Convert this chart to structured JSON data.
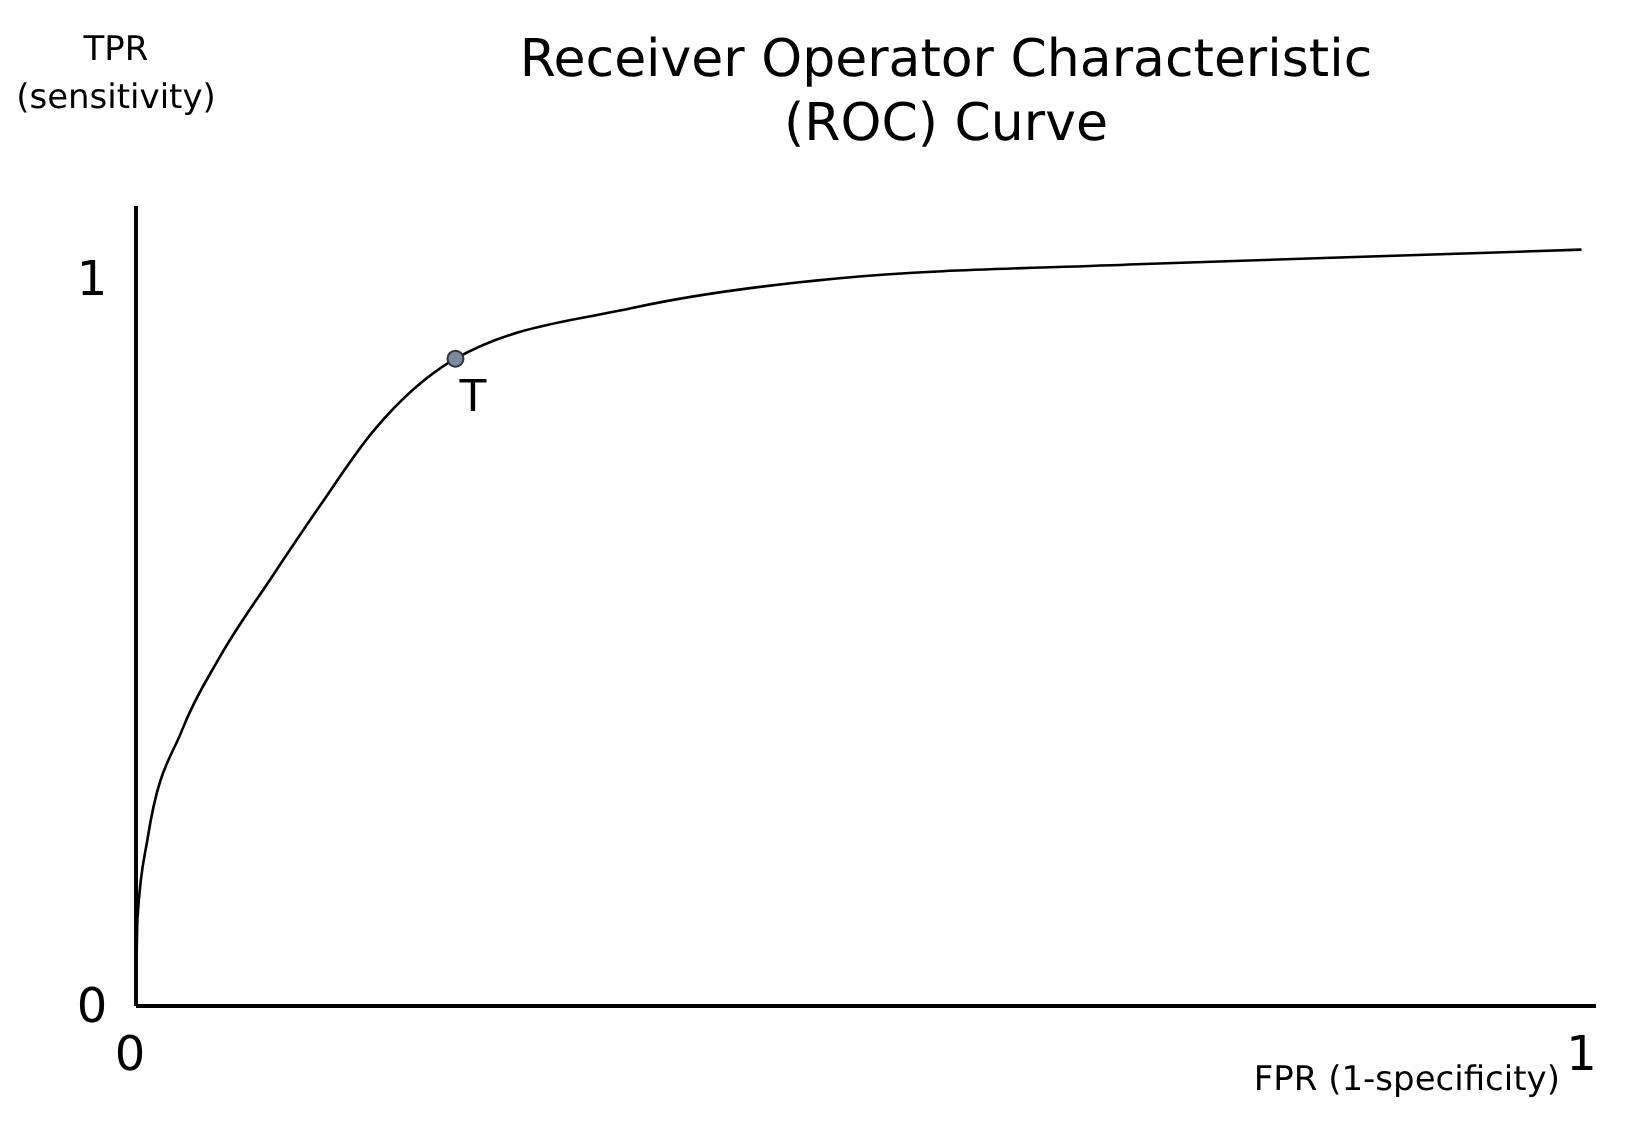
{
  "chart_data": {
    "type": "line",
    "title": "Receiver Operator Characteristic (ROC) Curve",
    "xlabel": "FPR (1-specificity)",
    "ylabel": "TPR (sensitivity)",
    "xlim": [
      0,
      1.01
    ],
    "ylim": [
      0,
      1.1
    ],
    "xticks": [
      0,
      1
    ],
    "yticks": [
      0,
      1
    ],
    "grid": false,
    "series": [
      {
        "color": "#000000",
        "marker": "none",
        "line_style": "solid",
        "x": [
          0,
          0.001,
          0.008,
          0.032,
          0.058,
          0.094,
          0.128,
          0.164,
          0.221,
          0.344,
          0.483,
          0.692,
          1.0
        ],
        "values": [
          0,
          0.12,
          0.23,
          0.38,
          0.48,
          0.59,
          0.69,
          0.79,
          0.89,
          0.96,
          1.0,
          1.02,
          1.04
        ]
      },
      {
        "type": "scatter",
        "color": "#7a8aa0",
        "marker": "circle",
        "x": [
          0.221
        ],
        "values": [
          0.89
        ]
      }
    ],
    "annotations": [
      {
        "text": "T",
        "x": 0.221,
        "y": 0.89
      }
    ]
  }
}
